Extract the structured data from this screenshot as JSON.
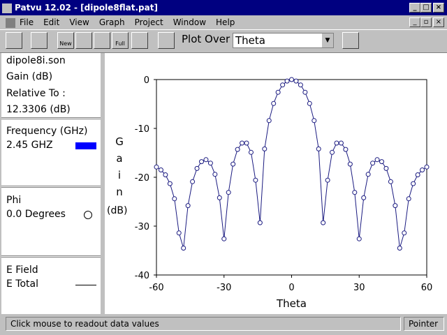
{
  "window": {
    "title": "Patvu 12.02 - [dipole8flat.pat]"
  },
  "menu": [
    "File",
    "Edit",
    "View",
    "Graph",
    "Project",
    "Window",
    "Help"
  ],
  "toolbar": {
    "new": "New",
    "full": "Full",
    "plot_over_label": "Plot Over",
    "plot_over_value": "Theta"
  },
  "panel": {
    "file": "dipole8i.son",
    "quantity": "Gain (dB)",
    "relative_label": "Relative To :",
    "relative_value": "12.3306 (dB)",
    "frequency_label": "Frequency (GHz)",
    "frequency_value": "2.45 GHZ",
    "frequency_color": "#0000ff",
    "phi_label": "Phi",
    "phi_value": "0.0 Degrees",
    "field_label": "E Field",
    "field_value": "E Total"
  },
  "status": {
    "message": "Click mouse to readout data values",
    "mode": "Pointer"
  },
  "chart_data": {
    "type": "line",
    "xlabel": "Theta",
    "ylabel": "Gain",
    "ylabel_units": "(dB)",
    "xlim": [
      -60,
      60
    ],
    "xticks": [
      -60,
      -30,
      0,
      30,
      60
    ],
    "ylim": [
      -40,
      0
    ],
    "yticks": [
      0,
      -10,
      -20,
      -30,
      -40
    ],
    "markers": "open-circle",
    "series": [
      {
        "name": "2.45 GHZ",
        "color": "#1a1a80",
        "x": [
          -60,
          -58,
          -56,
          -54,
          -52,
          -50,
          -48,
          -46,
          -44,
          -42,
          -40,
          -38,
          -36,
          -34,
          -32,
          -30,
          -28,
          -26,
          -24,
          -22,
          -20,
          -18,
          -16,
          -14,
          -12,
          -10,
          -8,
          -6,
          -4,
          -2,
          0,
          2,
          4,
          6,
          8,
          10,
          12,
          14,
          16,
          18,
          20,
          22,
          24,
          26,
          28,
          30,
          32,
          34,
          36,
          38,
          40,
          42,
          44,
          46,
          48,
          50,
          52,
          54,
          56,
          58,
          60
        ],
        "values": [
          -17.9,
          -18.5,
          -19.5,
          -21.3,
          -24.4,
          -31.4,
          -34.5,
          -25.8,
          -20.9,
          -18.2,
          -16.8,
          -16.4,
          -17.1,
          -19.4,
          -24.2,
          -32.6,
          -23.1,
          -17.3,
          -14.3,
          -13.0,
          -13.0,
          -14.9,
          -20.6,
          -29.3,
          -14.2,
          -8.4,
          -4.9,
          -2.6,
          -1.1,
          -0.3,
          0,
          -0.3,
          -1.1,
          -2.6,
          -4.9,
          -8.4,
          -14.2,
          -29.3,
          -20.6,
          -14.9,
          -13.0,
          -13.0,
          -14.3,
          -17.3,
          -23.1,
          -32.6,
          -24.2,
          -19.4,
          -17.1,
          -16.4,
          -16.8,
          -18.2,
          -20.9,
          -25.8,
          -34.5,
          -31.4,
          -24.4,
          -21.3,
          -19.5,
          -18.5,
          -17.9
        ]
      }
    ]
  }
}
